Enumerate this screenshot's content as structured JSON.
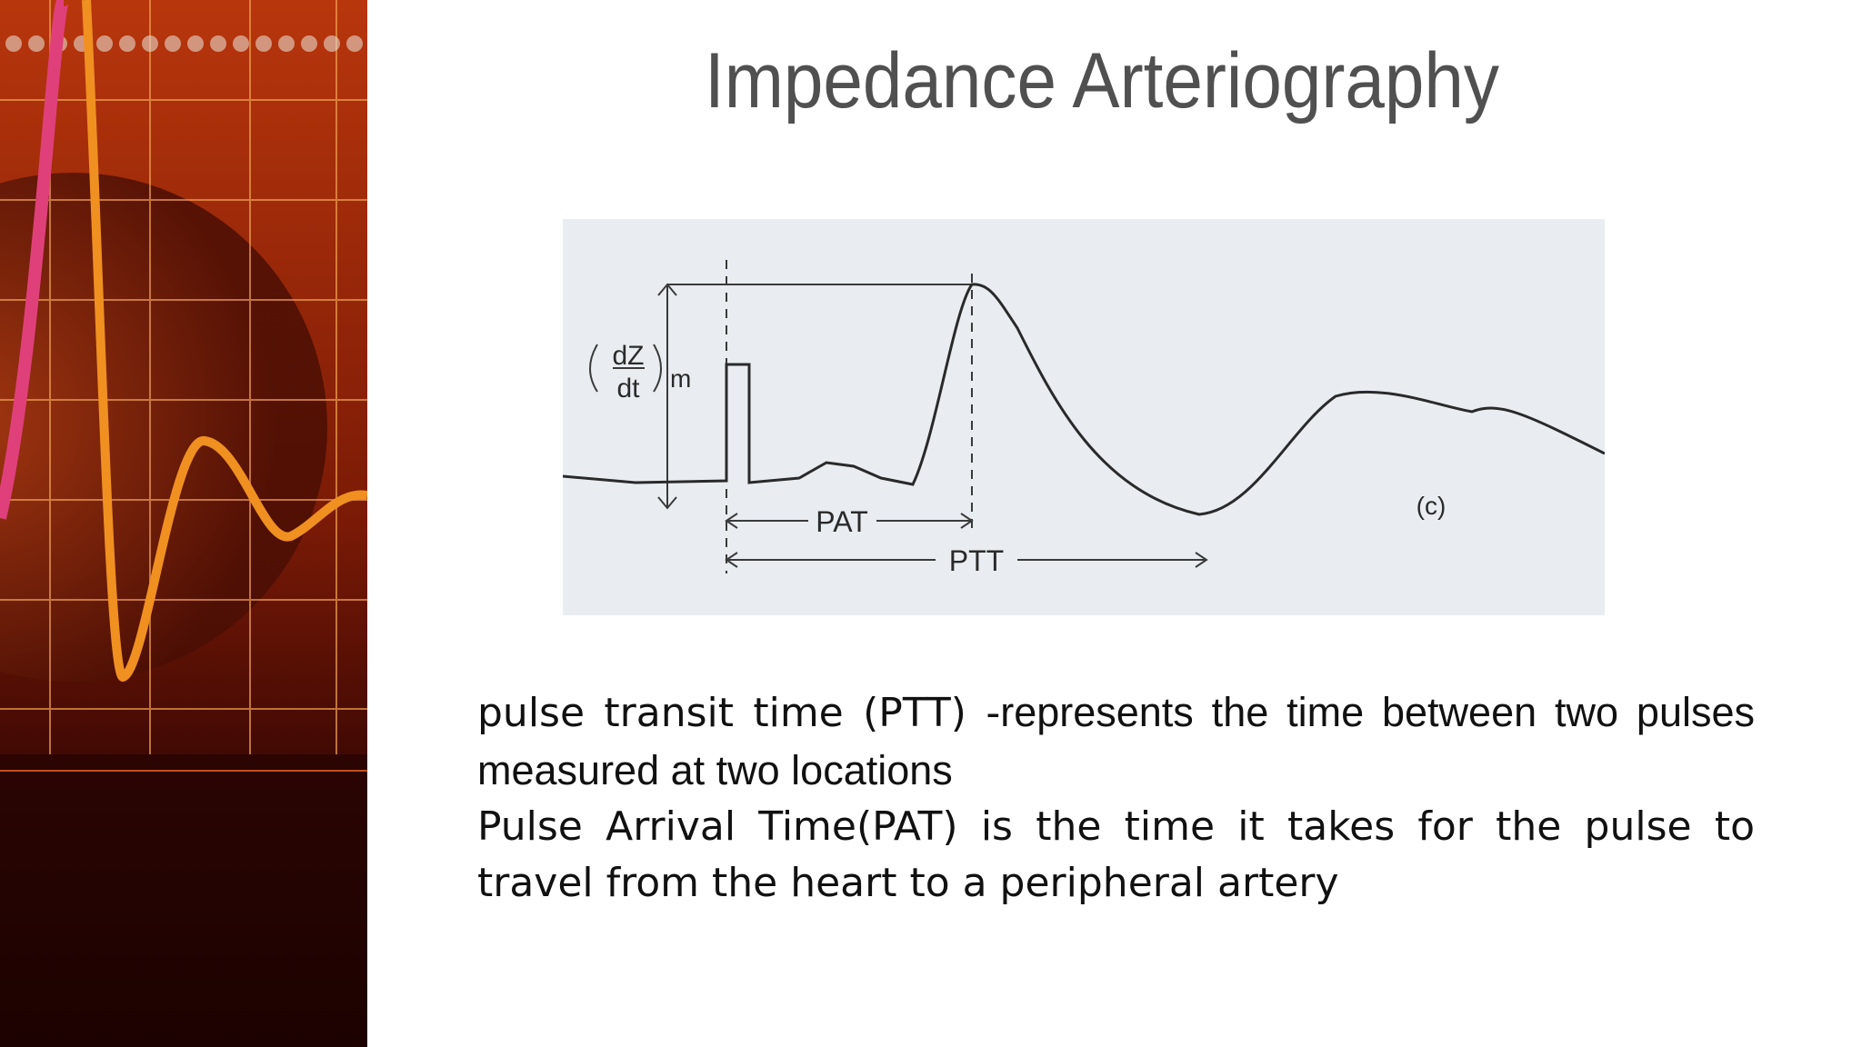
{
  "title": "Impedance Arteriography",
  "figure": {
    "labels": {
      "numerator": "dZ",
      "denominator": "dt",
      "subscript": "m",
      "pat": "PAT",
      "ptt": "PTT",
      "panel": "(c)"
    }
  },
  "body": {
    "paragraphs": [
      {
        "runs": [
          "pulse transit time (PTT) -",
          "represents the time between two pulses measured at two locations"
        ]
      },
      {
        "runs": [
          "Pulse Arrival Time(PAT) is the time it takes for the pulse to travel from the heart to a peripheral artery"
        ]
      }
    ]
  }
}
